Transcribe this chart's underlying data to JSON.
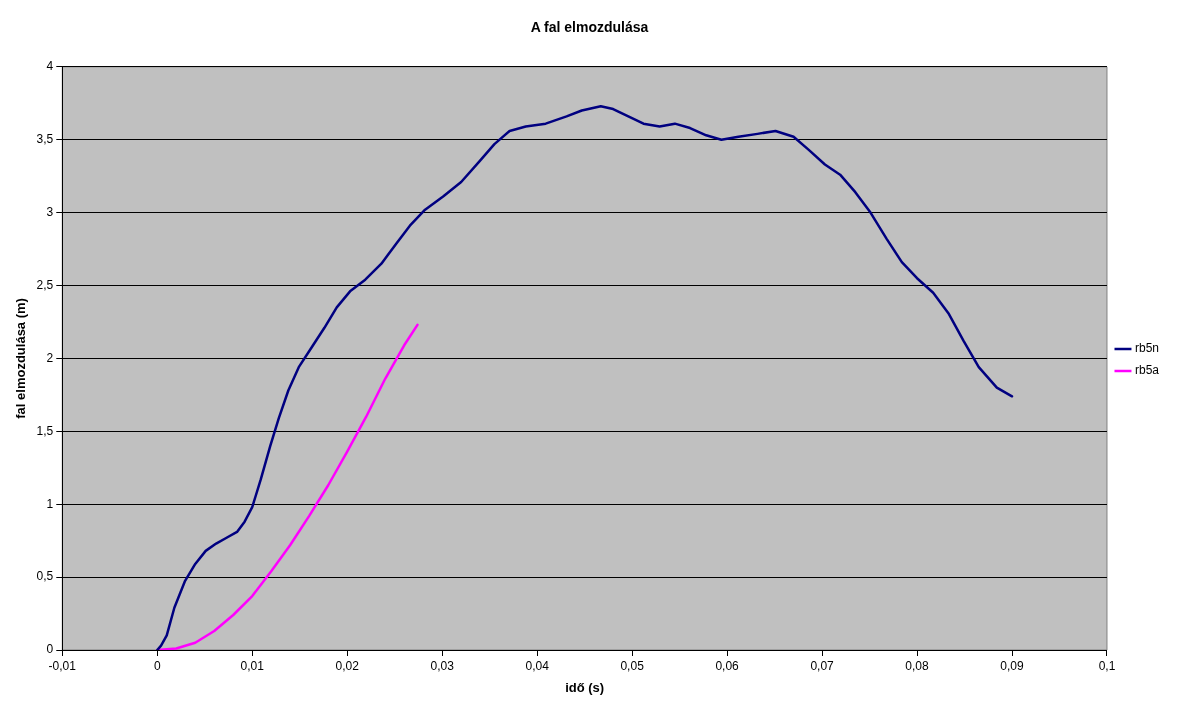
{
  "chart_data": {
    "type": "line",
    "title": "A fal elmozdulása",
    "xlabel": "idő (s)",
    "ylabel": "fal elmozdulása (m)",
    "xlim": [
      -0.01,
      0.1
    ],
    "ylim": [
      0,
      4
    ],
    "xticks": [
      {
        "value": -0.01,
        "label": "-0,01"
      },
      0,
      {
        "value": 0.01,
        "label": "0,01"
      },
      {
        "value": 0.02,
        "label": "0,02"
      },
      {
        "value": 0.03,
        "label": "0,03"
      },
      {
        "value": 0.04,
        "label": "0,04"
      },
      {
        "value": 0.05,
        "label": "0,05"
      },
      {
        "value": 0.06,
        "label": "0,06"
      },
      {
        "value": 0.07,
        "label": "0,07"
      },
      {
        "value": 0.08,
        "label": "0,08"
      },
      {
        "value": 0.09,
        "label": "0,09"
      },
      {
        "value": 0.1,
        "label": "0,1"
      }
    ],
    "yticks": [
      0,
      {
        "value": 0.5,
        "label": "0,5"
      },
      1,
      {
        "value": 1.5,
        "label": "1,5"
      },
      2,
      {
        "value": 2.5,
        "label": "2,5"
      },
      3,
      {
        "value": 3.5,
        "label": "3,5"
      },
      4
    ],
    "grid": "y",
    "legend": "right",
    "marker": "none",
    "line_style": "solid",
    "series": [
      {
        "name": "rb5n",
        "color": "#000080",
        "x": [
          0,
          0.0004,
          0.001,
          0.0018,
          0.0029,
          0.004,
          0.0051,
          0.0062,
          0.0073,
          0.0084,
          0.0092,
          0.01,
          0.0109,
          0.0119,
          0.0128,
          0.0138,
          0.0149,
          0.0163,
          0.0176,
          0.0189,
          0.0203,
          0.0219,
          0.0236,
          0.0252,
          0.0266,
          0.0282,
          0.0301,
          0.032,
          0.0339,
          0.0355,
          0.0371,
          0.0388,
          0.0409,
          0.0431,
          0.0447,
          0.0467,
          0.048,
          0.0496,
          0.0512,
          0.0529,
          0.0545,
          0.0561,
          0.0578,
          0.0594,
          0.0612,
          0.0632,
          0.0651,
          0.067,
          0.0686,
          0.0703,
          0.0719,
          0.0735,
          0.0751,
          0.0768,
          0.0784,
          0.08,
          0.0817,
          0.0833,
          0.0849,
          0.0865,
          0.0884,
          0.09
        ],
        "values": [
          0,
          0.03,
          0.1,
          0.29,
          0.47,
          0.59,
          0.68,
          0.73,
          0.77,
          0.81,
          0.88,
          0.98,
          1.17,
          1.4,
          1.59,
          1.78,
          1.94,
          2.08,
          2.21,
          2.35,
          2.46,
          2.54,
          2.65,
          2.79,
          2.91,
          3.02,
          3.11,
          3.21,
          3.35,
          3.47,
          3.56,
          3.59,
          3.61,
          3.66,
          3.7,
          3.73,
          3.71,
          3.66,
          3.61,
          3.59,
          3.61,
          3.58,
          3.53,
          3.5,
          3.52,
          3.54,
          3.56,
          3.52,
          3.43,
          3.33,
          3.26,
          3.14,
          3.0,
          2.82,
          2.66,
          2.55,
          2.45,
          2.31,
          2.12,
          1.94,
          1.8,
          1.74
        ]
      },
      {
        "name": "rb5a",
        "color": "#ff00ff",
        "x": [
          0,
          0.002,
          0.004,
          0.006,
          0.008,
          0.01,
          0.012,
          0.014,
          0.016,
          0.018,
          0.02,
          0.022,
          0.024,
          0.026,
          0.0274
        ],
        "values": [
          0,
          0.01,
          0.05,
          0.13,
          0.24,
          0.37,
          0.54,
          0.72,
          0.92,
          1.13,
          1.36,
          1.6,
          1.86,
          2.09,
          2.23
        ]
      }
    ]
  }
}
